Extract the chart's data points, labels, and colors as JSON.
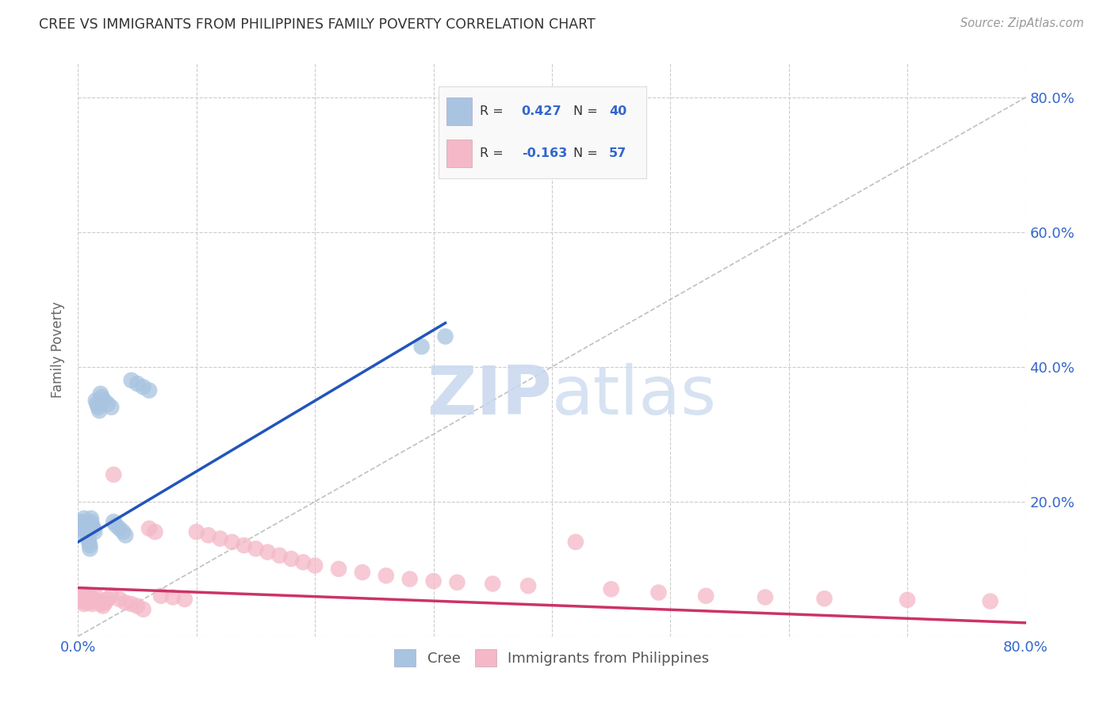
{
  "title": "CREE VS IMMIGRANTS FROM PHILIPPINES FAMILY POVERTY CORRELATION CHART",
  "source": "Source: ZipAtlas.com",
  "ylabel": "Family Poverty",
  "xlim": [
    0.0,
    0.8
  ],
  "ylim": [
    0.0,
    0.85
  ],
  "background_color": "#ffffff",
  "grid_color": "#cccccc",
  "cree_color": "#a8c4e0",
  "phil_color": "#f4b8c8",
  "cree_line_color": "#2255bb",
  "phil_line_color": "#cc3366",
  "diagonal_color": "#c0c0c0",
  "cree_scatter_x": [
    0.001,
    0.002,
    0.003,
    0.004,
    0.005,
    0.005,
    0.006,
    0.007,
    0.007,
    0.008,
    0.008,
    0.009,
    0.009,
    0.01,
    0.01,
    0.011,
    0.011,
    0.012,
    0.013,
    0.014,
    0.015,
    0.016,
    0.017,
    0.018,
    0.019,
    0.02,
    0.022,
    0.025,
    0.028,
    0.03,
    0.032,
    0.035,
    0.038,
    0.04,
    0.045,
    0.05,
    0.055,
    0.06,
    0.29,
    0.31
  ],
  "cree_scatter_y": [
    0.16,
    0.155,
    0.17,
    0.165,
    0.175,
    0.168,
    0.162,
    0.158,
    0.165,
    0.155,
    0.15,
    0.145,
    0.14,
    0.135,
    0.13,
    0.175,
    0.17,
    0.165,
    0.16,
    0.155,
    0.35,
    0.345,
    0.34,
    0.335,
    0.36,
    0.355,
    0.35,
    0.345,
    0.34,
    0.17,
    0.165,
    0.16,
    0.155,
    0.15,
    0.38,
    0.375,
    0.37,
    0.365,
    0.43,
    0.445
  ],
  "phil_scatter_x": [
    0.002,
    0.003,
    0.004,
    0.005,
    0.006,
    0.007,
    0.008,
    0.009,
    0.01,
    0.011,
    0.012,
    0.013,
    0.015,
    0.017,
    0.019,
    0.021,
    0.023,
    0.025,
    0.028,
    0.03,
    0.035,
    0.04,
    0.045,
    0.05,
    0.055,
    0.06,
    0.065,
    0.07,
    0.08,
    0.09,
    0.1,
    0.11,
    0.12,
    0.13,
    0.14,
    0.15,
    0.16,
    0.17,
    0.18,
    0.19,
    0.2,
    0.22,
    0.24,
    0.26,
    0.28,
    0.3,
    0.32,
    0.35,
    0.38,
    0.42,
    0.45,
    0.49,
    0.53,
    0.58,
    0.63,
    0.7,
    0.77
  ],
  "phil_scatter_y": [
    0.055,
    0.06,
    0.052,
    0.048,
    0.062,
    0.058,
    0.05,
    0.055,
    0.06,
    0.052,
    0.048,
    0.055,
    0.06,
    0.052,
    0.048,
    0.045,
    0.05,
    0.055,
    0.06,
    0.24,
    0.055,
    0.05,
    0.048,
    0.045,
    0.04,
    0.16,
    0.155,
    0.06,
    0.058,
    0.055,
    0.155,
    0.15,
    0.145,
    0.14,
    0.135,
    0.13,
    0.125,
    0.12,
    0.115,
    0.11,
    0.105,
    0.1,
    0.095,
    0.09,
    0.085,
    0.082,
    0.08,
    0.078,
    0.075,
    0.14,
    0.07,
    0.065,
    0.06,
    0.058,
    0.056,
    0.054,
    0.052
  ],
  "cree_line_x": [
    0.0,
    0.31
  ],
  "cree_line_y": [
    0.14,
    0.465
  ],
  "phil_line_x": [
    0.0,
    0.8
  ],
  "phil_line_y": [
    0.072,
    0.02
  ],
  "legend_label_cree": "Cree",
  "legend_label_phil": "Immigrants from Philippines",
  "watermark": "ZIPatlas",
  "watermark_zip": "ZIP",
  "watermark_atlas": "atlas"
}
